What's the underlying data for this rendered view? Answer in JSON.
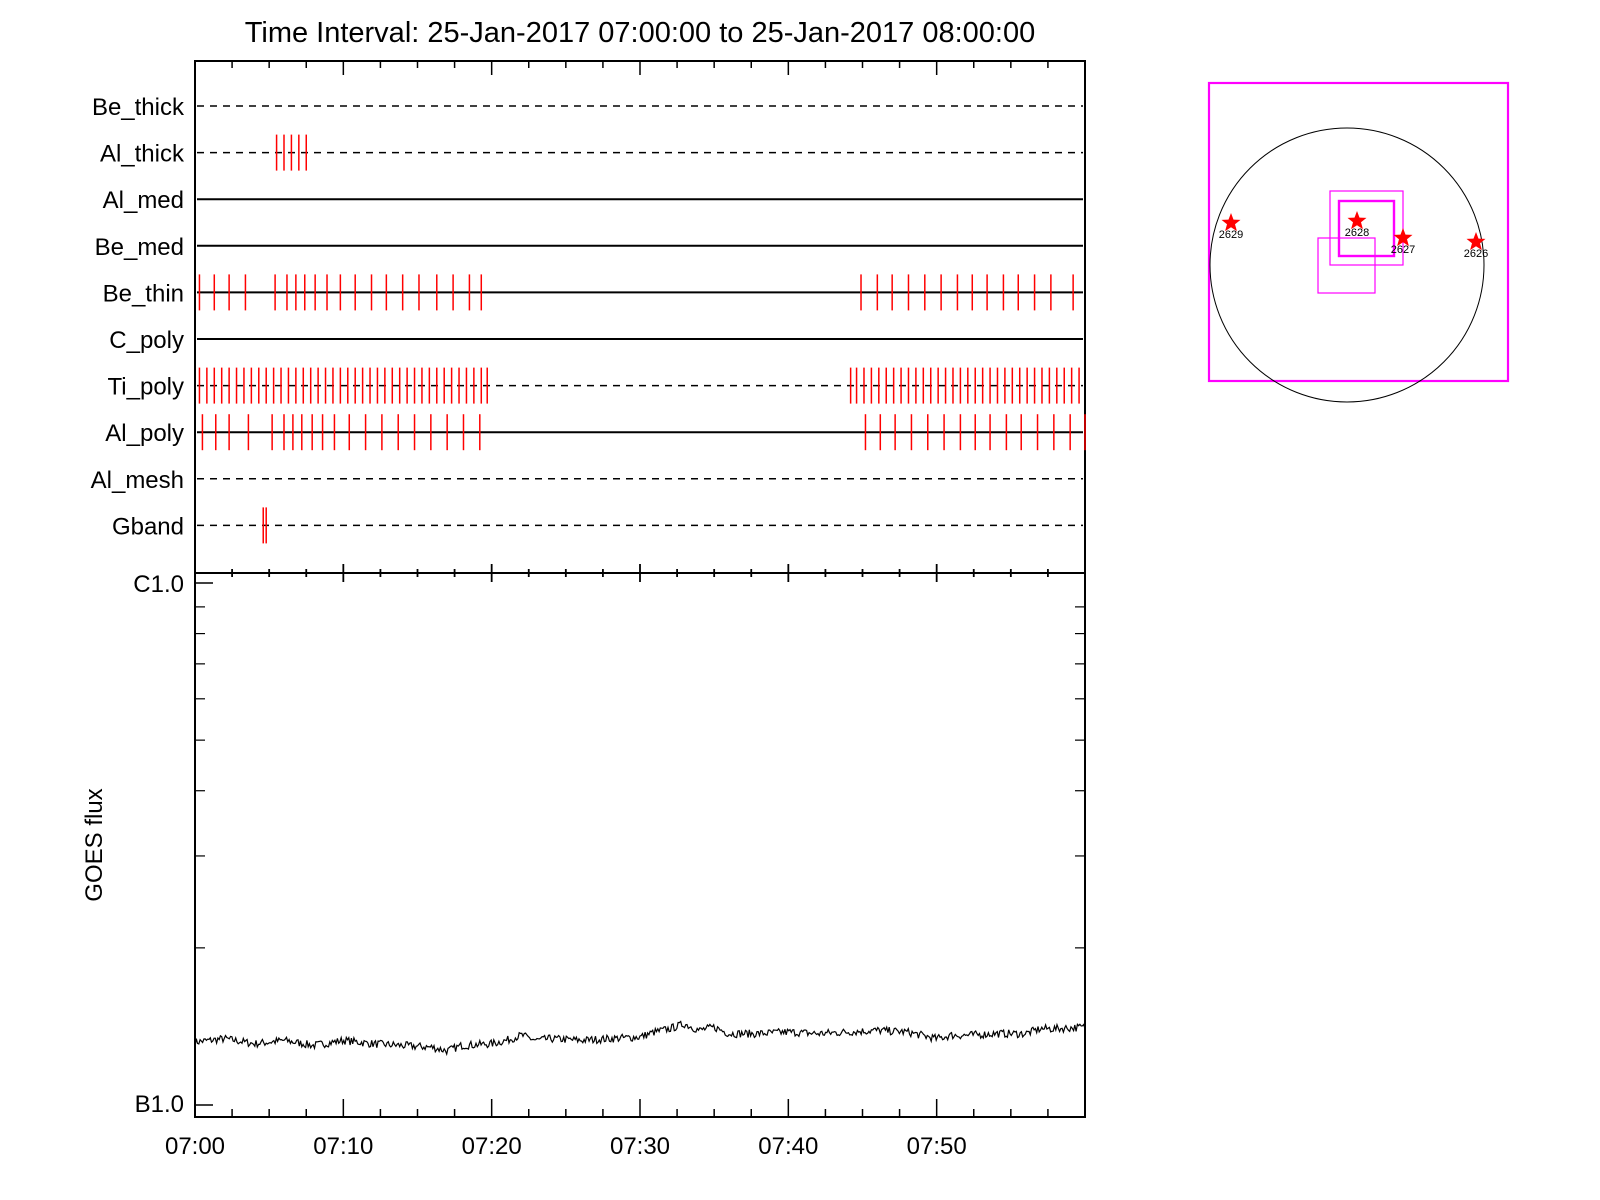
{
  "title": "Time Interval: 25-Jan-2017 07:00:00 to 25-Jan-2017 08:00:00",
  "colors": {
    "axes": "#000000",
    "marks": "#ff0000",
    "boxes": "#ff00ff",
    "disk": "#000000"
  },
  "chart_data": [
    {
      "type": "event-timeline",
      "x_range_minutes": [
        0,
        60
      ],
      "x_tick_labels": [
        "07:00",
        "07:10",
        "07:20",
        "07:30",
        "07:40",
        "07:50"
      ],
      "rows": [
        {
          "label": "Be_thick",
          "line": "dashed",
          "marks": []
        },
        {
          "label": "Al_thick",
          "line": "dashed",
          "marks": [
            5.5,
            6.0,
            6.5,
            7.0,
            7.5
          ]
        },
        {
          "label": "Al_med",
          "line": "solid",
          "marks": []
        },
        {
          "label": "Be_med",
          "line": "solid",
          "marks": []
        },
        {
          "label": "Be_thin",
          "line": "solid",
          "marks": [
            0.3,
            1.3,
            2.3,
            3.4,
            5.4,
            6.2,
            6.8,
            7.4,
            8.1,
            8.9,
            9.8,
            10.8,
            11.9,
            12.9,
            14.0,
            15.1,
            16.3,
            17.4,
            18.5,
            19.3,
            44.9,
            46.0,
            47.0,
            48.1,
            49.2,
            50.3,
            51.4,
            52.4,
            53.4,
            54.5,
            55.5,
            56.6,
            57.7,
            59.2
          ]
        },
        {
          "label": "C_poly",
          "line": "solid",
          "marks": []
        },
        {
          "label": "Ti_poly",
          "line": "dashed",
          "marks": [
            0.3,
            0.8,
            1.3,
            1.8,
            2.3,
            2.8,
            3.3,
            3.8,
            4.3,
            4.8,
            5.3,
            5.8,
            6.3,
            6.8,
            7.3,
            7.8,
            8.3,
            8.8,
            9.3,
            9.8,
            10.3,
            10.8,
            11.3,
            11.8,
            12.3,
            12.8,
            13.3,
            13.8,
            14.3,
            14.8,
            15.3,
            15.8,
            16.3,
            16.8,
            17.3,
            17.8,
            18.3,
            18.8,
            19.3,
            19.7,
            44.2,
            44.6,
            45.1,
            45.6,
            46.1,
            46.6,
            47.1,
            47.6,
            48.1,
            48.6,
            49.1,
            49.6,
            50.1,
            50.6,
            51.1,
            51.6,
            52.1,
            52.6,
            53.1,
            53.6,
            54.1,
            54.6,
            55.1,
            55.6,
            56.1,
            56.6,
            57.1,
            57.6,
            58.1,
            58.6,
            59.1,
            59.6
          ]
        },
        {
          "label": "Al_poly",
          "line": "solid",
          "marks": [
            0.5,
            1.4,
            2.3,
            3.6,
            5.2,
            6.0,
            6.6,
            7.2,
            7.9,
            8.6,
            9.4,
            10.4,
            11.5,
            12.6,
            13.7,
            14.8,
            15.9,
            17.0,
            18.1,
            19.2,
            45.2,
            46.2,
            47.2,
            48.3,
            49.4,
            50.5,
            51.6,
            52.6,
            53.6,
            54.7,
            55.7,
            56.8,
            57.9,
            59.0,
            60.0
          ]
        },
        {
          "label": "Al_mesh",
          "line": "dashed",
          "marks": []
        },
        {
          "label": "Gband",
          "line": "dashed",
          "marks": [
            4.6,
            4.8
          ]
        }
      ]
    },
    {
      "type": "line",
      "ylabel": "GOES flux",
      "ytick_labels": [
        "C1.0",
        "B1.0"
      ],
      "y_log": true,
      "ylim": [
        1e-06,
        1e-07
      ],
      "xlim_minutes": [
        0,
        60
      ],
      "x_tick_labels": [
        "07:00",
        "07:10",
        "07:20",
        "07:30",
        "07:40",
        "07:50"
      ],
      "series": [
        {
          "x": [
            0,
            2,
            4,
            6,
            8,
            10,
            12,
            14,
            16,
            17,
            18,
            20,
            21,
            22,
            23,
            24,
            26,
            28,
            30,
            31,
            32,
            33,
            34,
            35,
            36,
            38,
            40,
            42,
            44,
            46,
            48,
            50,
            51,
            52,
            54,
            56,
            57,
            58,
            60
          ],
          "y": [
            1.32e-07,
            1.34e-07,
            1.31e-07,
            1.33e-07,
            1.3e-07,
            1.33e-07,
            1.31e-07,
            1.3e-07,
            1.29e-07,
            1.27e-07,
            1.3e-07,
            1.31e-07,
            1.33e-07,
            1.36e-07,
            1.33e-07,
            1.34e-07,
            1.33e-07,
            1.34e-07,
            1.35e-07,
            1.38e-07,
            1.4e-07,
            1.43e-07,
            1.39e-07,
            1.41e-07,
            1.37e-07,
            1.37e-07,
            1.38e-07,
            1.37e-07,
            1.38e-07,
            1.39e-07,
            1.38e-07,
            1.34e-07,
            1.36e-07,
            1.36e-07,
            1.37e-07,
            1.37e-07,
            1.4e-07,
            1.4e-07,
            1.41e-07
          ]
        }
      ]
    },
    {
      "type": "solar-disk-map",
      "active_regions": [
        {
          "label": "2629"
        },
        {
          "label": "2628"
        },
        {
          "label": "2627"
        },
        {
          "label": "2626"
        }
      ]
    }
  ]
}
